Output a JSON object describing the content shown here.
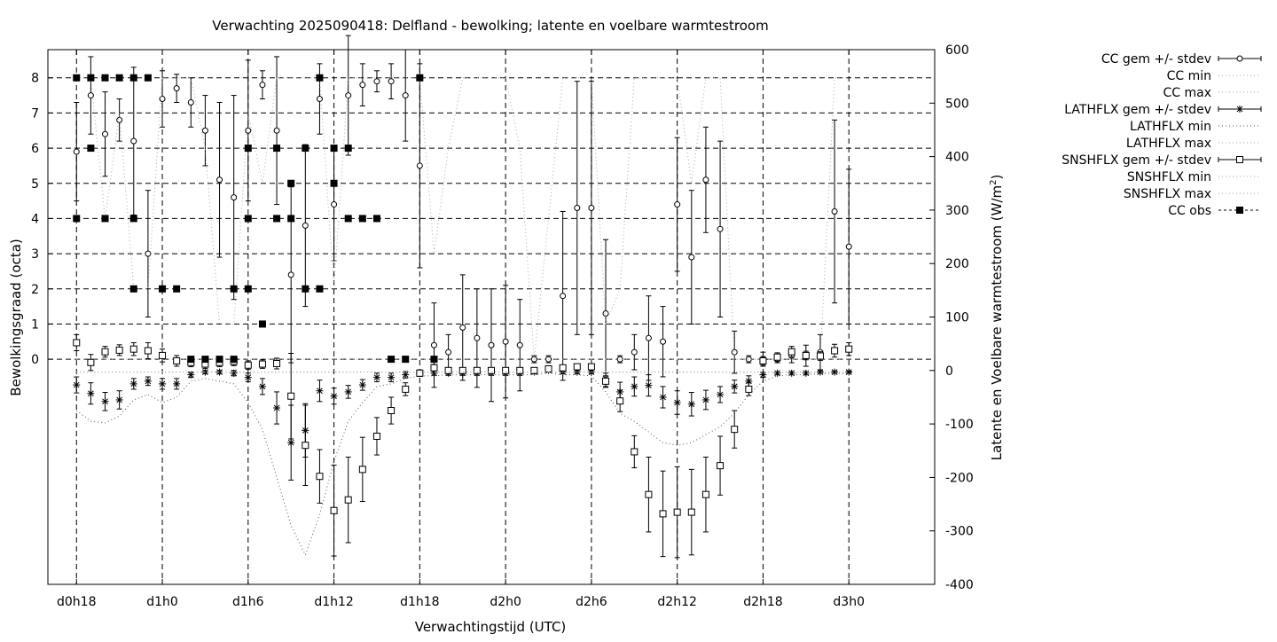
{
  "chart_data": {
    "type": "line",
    "title": "Verwachting 2025090418: Delfland - bewolking; latente en voelbare warmtestroom",
    "xlabel": "Verwachtingstijd (UTC)",
    "ylabel": "Bewolkingsgraad (octa)",
    "y2label_main": "Latente en Voelbare warmtestroom (W/m",
    "y2label_sup": "2",
    "y2label_end": ")",
    "x_ticks": [
      {
        "label": "d0h18",
        "value": 18
      },
      {
        "label": "d1h0",
        "value": 24
      },
      {
        "label": "d1h6",
        "value": 30
      },
      {
        "label": "d1h12",
        "value": 36
      },
      {
        "label": "d1h18",
        "value": 42
      },
      {
        "label": "d2h0",
        "value": 48
      },
      {
        "label": "d2h6",
        "value": 54
      },
      {
        "label": "d2h12",
        "value": 60
      },
      {
        "label": "d2h18",
        "value": 66
      },
      {
        "label": "d3h0",
        "value": 72
      }
    ],
    "xlim": [
      16,
      78
    ],
    "y_ticks": [
      {
        "label": "0",
        "value": 0
      },
      {
        "label": "1",
        "value": 1
      },
      {
        "label": "2",
        "value": 2
      },
      {
        "label": "3",
        "value": 3
      },
      {
        "label": "4",
        "value": 4
      },
      {
        "label": "5",
        "value": 5
      },
      {
        "label": "6",
        "value": 6
      },
      {
        "label": "7",
        "value": 7
      },
      {
        "label": "8",
        "value": 8
      }
    ],
    "ylim": [
      -6.4,
      8.8
    ],
    "y2_ticks": [
      {
        "label": "-400",
        "value": -400
      },
      {
        "label": "-300",
        "value": -300
      },
      {
        "label": "-200",
        "value": -200
      },
      {
        "label": "-100",
        "value": -100
      },
      {
        "label": "0",
        "value": 0
      },
      {
        "label": "100",
        "value": 100
      },
      {
        "label": "200",
        "value": 200
      },
      {
        "label": "300",
        "value": 300
      },
      {
        "label": "400",
        "value": 400
      },
      {
        "label": "500",
        "value": 500
      },
      {
        "label": "600",
        "value": 600
      }
    ],
    "y2lim": [
      -400,
      600
    ],
    "grid": true,
    "legend_position": "top-right, outside plot",
    "series": [
      {
        "name": "CC gem +/- stdev",
        "axis": "y1",
        "marker": "circle",
        "style": "errorbar",
        "x": [
          18,
          19,
          20,
          21,
          22,
          23,
          24,
          25,
          26,
          27,
          28,
          29,
          30,
          31,
          32,
          33,
          34,
          35,
          36,
          37,
          38,
          39,
          40,
          41,
          42,
          43,
          44,
          45,
          46,
          47,
          48,
          49,
          50,
          51,
          52,
          53,
          54,
          55,
          56,
          57,
          58,
          59,
          60,
          61,
          62,
          63,
          64,
          65,
          66,
          67,
          68,
          69,
          70,
          71,
          72
        ],
        "y": [
          5.9,
          7.5,
          6.4,
          6.8,
          6.2,
          3.0,
          7.4,
          7.7,
          7.3,
          6.5,
          5.1,
          4.6,
          6.5,
          7.8,
          6.5,
          2.4,
          3.8,
          7.4,
          4.4,
          7.5,
          7.8,
          7.9,
          7.9,
          7.5,
          5.5,
          0.4,
          0.2,
          0.9,
          0.6,
          0.4,
          0.5,
          0.4,
          0.0,
          0.0,
          1.8,
          4.3,
          4.3,
          1.3,
          0.0,
          0.2,
          0.6,
          0.5,
          4.4,
          2.9,
          5.1,
          3.7,
          0.2,
          0.0,
          0.0,
          0.0,
          0.1,
          0.1,
          0.2,
          4.2,
          3.2
        ],
        "err": [
          1.4,
          1.1,
          1.2,
          0.6,
          2.1,
          1.8,
          0.8,
          0.4,
          0.7,
          1.0,
          2.2,
          2.9,
          2.0,
          0.4,
          2.1,
          2.5,
          2.3,
          1.0,
          1.6,
          1.7,
          0.6,
          0.3,
          0.5,
          1.3,
          2.9,
          1.2,
          0.5,
          1.5,
          1.4,
          1.6,
          1.6,
          1.3,
          0.1,
          0.1,
          2.4,
          3.6,
          3.6,
          2.1,
          0.1,
          0.5,
          1.2,
          1.0,
          1.9,
          1.9,
          1.5,
          2.5,
          0.6,
          0.1,
          0.2,
          0.1,
          0.2,
          0.3,
          0.5,
          2.6,
          2.2
        ]
      },
      {
        "name": "CC min",
        "axis": "y1",
        "marker": "none",
        "style": "dotted-light",
        "x": [
          18,
          21,
          24,
          27,
          30,
          33,
          36,
          39,
          42,
          45,
          48,
          51,
          54,
          57,
          60,
          63,
          66,
          69,
          72
        ],
        "y": [
          0,
          0,
          0,
          0,
          0,
          0,
          0,
          0,
          0,
          0,
          0,
          0,
          0,
          0,
          0,
          0,
          0,
          0,
          0
        ]
      },
      {
        "name": "CC max",
        "axis": "y1",
        "marker": "none",
        "style": "dotted-light",
        "x": [
          18,
          19,
          20,
          21,
          22,
          23,
          24,
          25,
          26,
          27,
          28,
          29,
          30,
          31,
          32,
          33,
          34,
          35,
          36,
          37,
          38,
          39,
          40,
          41,
          42,
          43,
          44,
          45,
          46,
          47,
          48,
          49,
          50,
          51,
          52,
          53,
          54,
          55,
          56,
          57,
          58,
          59,
          60,
          61,
          62,
          63,
          64,
          65,
          66,
          67,
          68,
          69,
          70,
          71,
          72
        ],
        "y": [
          8,
          8,
          4,
          7,
          2,
          2,
          8,
          8,
          8,
          6,
          1,
          1,
          7,
          5,
          8,
          8,
          8,
          8,
          2,
          8,
          8,
          8,
          8,
          8,
          8,
          3,
          6,
          8,
          8,
          8,
          8,
          6,
          0,
          4,
          8,
          8,
          8,
          1,
          2,
          8,
          8,
          8,
          8,
          5,
          8,
          8,
          0,
          0,
          0,
          0,
          0,
          0,
          0,
          8,
          8
        ]
      },
      {
        "name": "LATHFLX gem +/- stdev",
        "axis": "y2",
        "marker": "star",
        "style": "errorbar",
        "x": [
          18,
          19,
          20,
          21,
          22,
          23,
          24,
          25,
          26,
          27,
          28,
          29,
          30,
          31,
          32,
          33,
          34,
          35,
          36,
          37,
          38,
          39,
          40,
          41,
          42,
          43,
          44,
          45,
          46,
          47,
          48,
          49,
          50,
          51,
          52,
          53,
          54,
          55,
          56,
          57,
          58,
          59,
          60,
          61,
          62,
          63,
          64,
          65,
          66,
          67,
          68,
          69,
          70,
          71,
          72
        ],
        "y": [
          -27,
          -43,
          -58,
          -55,
          -25,
          -20,
          -25,
          -25,
          -8,
          -3,
          -3,
          -5,
          -13,
          -30,
          -70,
          -135,
          -112,
          -38,
          -48,
          -40,
          -27,
          -13,
          -13,
          -8,
          -5,
          -5,
          -5,
          -5,
          -5,
          -5,
          -5,
          -5,
          -3,
          0,
          -3,
          -3,
          -3,
          -15,
          -40,
          -30,
          -28,
          -50,
          -60,
          -63,
          -55,
          -45,
          -30,
          -20,
          -8,
          -5,
          -5,
          -5,
          -3,
          -3,
          -3
        ],
        "err": [
          15,
          20,
          17,
          17,
          10,
          8,
          10,
          10,
          5,
          3,
          3,
          5,
          8,
          15,
          30,
          70,
          50,
          20,
          15,
          12,
          10,
          8,
          8,
          6,
          4,
          4,
          4,
          4,
          4,
          4,
          4,
          4,
          3,
          2,
          3,
          3,
          3,
          10,
          18,
          18,
          20,
          20,
          22,
          22,
          18,
          15,
          12,
          10,
          5,
          3,
          3,
          3,
          2,
          2,
          2
        ]
      },
      {
        "name": "LATHFLX min",
        "axis": "y2",
        "marker": "none",
        "style": "dotted",
        "x": [
          18,
          19,
          20,
          21,
          22,
          23,
          24,
          25,
          26,
          27,
          28,
          29,
          30,
          31,
          32,
          33,
          34,
          35,
          36,
          37,
          38,
          39,
          40,
          41,
          42,
          43,
          44,
          45,
          46,
          47,
          48,
          49,
          50,
          51,
          52,
          53,
          54,
          55,
          56,
          57,
          58,
          59,
          60,
          61,
          62,
          63,
          64,
          65,
          66,
          67,
          68,
          69,
          70,
          71,
          72
        ],
        "y": [
          -75,
          -95,
          -98,
          -85,
          -55,
          -45,
          -60,
          -50,
          -20,
          -15,
          -20,
          -25,
          -60,
          -110,
          -200,
          -290,
          -345,
          -270,
          -170,
          -95,
          -60,
          -30,
          -25,
          -15,
          -10,
          -10,
          -8,
          -8,
          -8,
          -8,
          -8,
          -8,
          -8,
          -5,
          -8,
          -8,
          -10,
          -40,
          -80,
          -95,
          -115,
          -135,
          -140,
          -135,
          -120,
          -105,
          -80,
          -45,
          -20,
          -10,
          -8,
          -8,
          -6,
          -6,
          -6
        ]
      },
      {
        "name": "LATHFLX max",
        "axis": "y2",
        "marker": "none",
        "style": "dotted-light",
        "x": [
          18,
          20,
          22,
          24,
          26,
          28,
          30,
          32,
          34,
          36,
          38,
          40,
          42,
          44,
          46,
          48,
          50,
          52,
          54,
          56,
          58,
          60,
          62,
          64,
          66,
          68,
          70,
          72
        ],
        "y": [
          -3,
          -3,
          -3,
          -3,
          -3,
          -3,
          -3,
          -3,
          -3,
          -3,
          -3,
          -3,
          -3,
          -3,
          -3,
          -3,
          -3,
          -3,
          -3,
          -3,
          -3,
          -3,
          -3,
          -3,
          -3,
          -3,
          -3,
          -3
        ]
      },
      {
        "name": "SNSHFLX gem +/- stdev",
        "axis": "y2",
        "marker": "square",
        "style": "errorbar",
        "x": [
          18,
          19,
          20,
          21,
          22,
          23,
          24,
          25,
          26,
          27,
          28,
          29,
          30,
          31,
          32,
          33,
          34,
          35,
          36,
          37,
          38,
          39,
          40,
          41,
          42,
          43,
          44,
          45,
          46,
          47,
          48,
          49,
          50,
          51,
          52,
          53,
          54,
          55,
          56,
          57,
          58,
          59,
          60,
          61,
          62,
          63,
          64,
          65,
          66,
          67,
          68,
          69,
          70,
          71,
          72
        ],
        "y": [
          52,
          15,
          35,
          38,
          40,
          37,
          28,
          18,
          15,
          12,
          15,
          17,
          10,
          12,
          13,
          -48,
          -140,
          -198,
          -262,
          -242,
          -185,
          -123,
          -75,
          -35,
          -5,
          5,
          0,
          0,
          0,
          0,
          0,
          0,
          0,
          3,
          5,
          7,
          7,
          -20,
          -57,
          -152,
          -232,
          -268,
          -265,
          -265,
          -232,
          -178,
          -110,
          -35,
          18,
          25,
          35,
          28,
          27,
          37,
          40
        ],
        "err": [
          15,
          15,
          10,
          10,
          12,
          15,
          12,
          10,
          8,
          8,
          8,
          8,
          8,
          8,
          10,
          80,
          75,
          50,
          85,
          80,
          60,
          35,
          25,
          12,
          6,
          6,
          5,
          5,
          5,
          5,
          5,
          5,
          5,
          5,
          5,
          5,
          5,
          10,
          20,
          30,
          70,
          80,
          85,
          80,
          70,
          55,
          35,
          12,
          8,
          8,
          10,
          8,
          8,
          12,
          12
        ]
      },
      {
        "name": "SNSHFLX min",
        "axis": "y2",
        "marker": "none",
        "style": "dotted-light",
        "x": [
          18,
          20,
          22,
          24,
          26,
          28,
          30,
          32,
          34,
          36,
          38,
          40,
          42,
          44,
          46,
          48,
          50,
          52,
          54,
          56,
          58,
          60,
          62,
          64,
          66,
          68,
          70,
          72
        ],
        "y": [
          -3,
          -3,
          -3,
          -3,
          -3,
          -3,
          -3,
          -3,
          -3,
          -3,
          -3,
          -3,
          -3,
          -3,
          -3,
          -3,
          -3,
          -3,
          -3,
          -3,
          -3,
          -3,
          -3,
          -3,
          -3,
          -3,
          -3,
          -3
        ]
      },
      {
        "name": "SNSHFLX max",
        "axis": "y2",
        "marker": "none",
        "style": "dotted-light",
        "x": [
          18,
          20,
          22,
          24,
          26,
          28,
          30,
          32,
          34,
          36,
          38,
          40,
          42,
          44,
          46,
          48,
          50,
          52,
          54,
          56,
          58,
          60,
          62,
          64,
          66,
          68,
          70,
          72
        ],
        "y": [
          -3,
          -3,
          -3,
          -3,
          -3,
          -3,
          -3,
          -3,
          -3,
          -3,
          -3,
          -3,
          -3,
          -3,
          -3,
          -3,
          -3,
          -3,
          -3,
          -3,
          -3,
          -3,
          -3,
          -3,
          -3,
          -3,
          -3,
          -3
        ]
      },
      {
        "name": "CC obs",
        "axis": "y1",
        "marker": "filled-square",
        "style": "points",
        "points": [
          [
            18,
            8
          ],
          [
            18,
            4
          ],
          [
            19,
            8
          ],
          [
            19,
            6
          ],
          [
            20,
            8
          ],
          [
            20,
            4
          ],
          [
            21,
            8
          ],
          [
            22,
            8
          ],
          [
            22,
            4
          ],
          [
            22,
            2
          ],
          [
            23,
            8
          ],
          [
            24,
            2
          ],
          [
            25,
            2
          ],
          [
            26,
            0
          ],
          [
            27,
            0
          ],
          [
            28,
            0
          ],
          [
            29,
            0
          ],
          [
            29,
            2
          ],
          [
            30,
            6
          ],
          [
            30,
            4
          ],
          [
            30,
            2
          ],
          [
            31,
            1
          ],
          [
            32,
            6
          ],
          [
            32,
            4
          ],
          [
            33,
            5
          ],
          [
            33,
            4
          ],
          [
            34,
            6
          ],
          [
            34,
            2
          ],
          [
            35,
            8
          ],
          [
            35,
            2
          ],
          [
            36,
            6
          ],
          [
            36,
            5
          ],
          [
            37,
            6
          ],
          [
            37,
            4
          ],
          [
            38,
            4
          ],
          [
            39,
            4
          ],
          [
            40,
            0
          ],
          [
            41,
            0
          ],
          [
            42,
            8
          ],
          [
            43,
            0
          ]
        ]
      }
    ]
  }
}
